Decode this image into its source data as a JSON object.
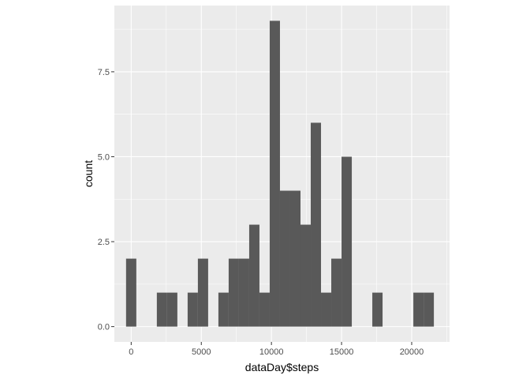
{
  "chart_data": {
    "type": "bar",
    "subtype": "histogram",
    "xlabel": "dataDay$steps",
    "ylabel": "count",
    "xlim": [
      -1200,
      22700
    ],
    "ylim": [
      -0.45,
      9.45
    ],
    "x_ticks": [
      0,
      5000,
      10000,
      15000,
      20000
    ],
    "x_tick_labels": [
      "0",
      "5000",
      "10000",
      "15000",
      "20000"
    ],
    "y_ticks": [
      0,
      2.5,
      5,
      7.5
    ],
    "y_tick_labels": [
      "0.0",
      "2.5",
      "5.0",
      "7.5"
    ],
    "grid": true,
    "bin_width": 731.6,
    "bins": [
      {
        "center": 0,
        "count": 2
      },
      {
        "center": 732,
        "count": 0
      },
      {
        "center": 1463,
        "count": 0
      },
      {
        "center": 2195,
        "count": 1
      },
      {
        "center": 2926,
        "count": 1
      },
      {
        "center": 3658,
        "count": 0
      },
      {
        "center": 4390,
        "count": 1
      },
      {
        "center": 5121,
        "count": 2
      },
      {
        "center": 5853,
        "count": 0
      },
      {
        "center": 6584,
        "count": 1
      },
      {
        "center": 7316,
        "count": 2
      },
      {
        "center": 8048,
        "count": 2
      },
      {
        "center": 8779,
        "count": 3
      },
      {
        "center": 9511,
        "count": 1
      },
      {
        "center": 10242,
        "count": 9
      },
      {
        "center": 10974,
        "count": 4
      },
      {
        "center": 11706,
        "count": 4
      },
      {
        "center": 12437,
        "count": 3
      },
      {
        "center": 13169,
        "count": 6
      },
      {
        "center": 13900,
        "count": 1
      },
      {
        "center": 14632,
        "count": 2
      },
      {
        "center": 15364,
        "count": 5
      },
      {
        "center": 16095,
        "count": 0
      },
      {
        "center": 16827,
        "count": 0
      },
      {
        "center": 17558,
        "count": 1
      },
      {
        "center": 18290,
        "count": 0
      },
      {
        "center": 19022,
        "count": 0
      },
      {
        "center": 19753,
        "count": 0
      },
      {
        "center": 20485,
        "count": 1
      },
      {
        "center": 21216,
        "count": 1
      }
    ],
    "colors": {
      "panel_background": "#ebebeb",
      "grid_major": "#ffffff",
      "bar_fill": "#595959",
      "tick_mark": "#333333",
      "tick_label": "#4d4d4d",
      "axis_title": "#000000"
    }
  }
}
